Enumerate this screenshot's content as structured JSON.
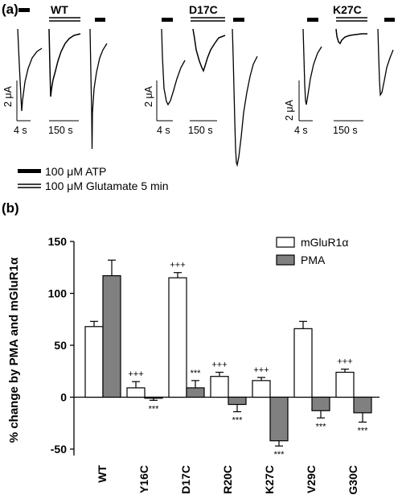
{
  "panel_a": {
    "label": "(a)",
    "groups": [
      {
        "name": "WT",
        "time_fast": "4 s",
        "time_slow": "150 s",
        "current": "2 μA"
      },
      {
        "name": "D17C",
        "time_fast": "4 s",
        "time_slow": "150 s",
        "current": "2 μA"
      },
      {
        "name": "K27C",
        "time_fast": "4 s",
        "time_slow": "150 s",
        "current": "2 μA"
      }
    ],
    "legend": {
      "atp": "100 μM ATP",
      "glutamate": "100 μM Glutamate 5 min"
    }
  },
  "panel_b": {
    "label": "(b)"
  },
  "chart_data": {
    "type": "bar",
    "categories": [
      "WT",
      "Y16C",
      "D17C",
      "R20C",
      "K27C",
      "V29C",
      "G30C"
    ],
    "series": [
      {
        "name": "mGluR1α",
        "color": "#ffffff",
        "values": [
          68,
          9,
          115,
          20,
          16,
          66,
          24
        ],
        "errors": [
          5,
          6,
          5,
          4,
          3,
          7,
          3
        ],
        "annotations": [
          "",
          "+++",
          "+++",
          "+++",
          "+++",
          "",
          "+++"
        ]
      },
      {
        "name": "PMA",
        "color": "#808080",
        "values": [
          117,
          -1,
          9,
          -7,
          -42,
          -13,
          -15
        ],
        "errors": [
          15,
          2,
          7,
          7,
          5,
          7,
          9
        ],
        "annotations": [
          "",
          "***",
          "***",
          "***",
          "***",
          "***",
          "***"
        ]
      }
    ],
    "ylabel": "% change by PMA and mGluR1α",
    "ylim": [
      -60,
      150
    ],
    "yticks": [
      -50,
      0,
      50,
      100,
      150
    ],
    "legend_position": "top-right"
  }
}
